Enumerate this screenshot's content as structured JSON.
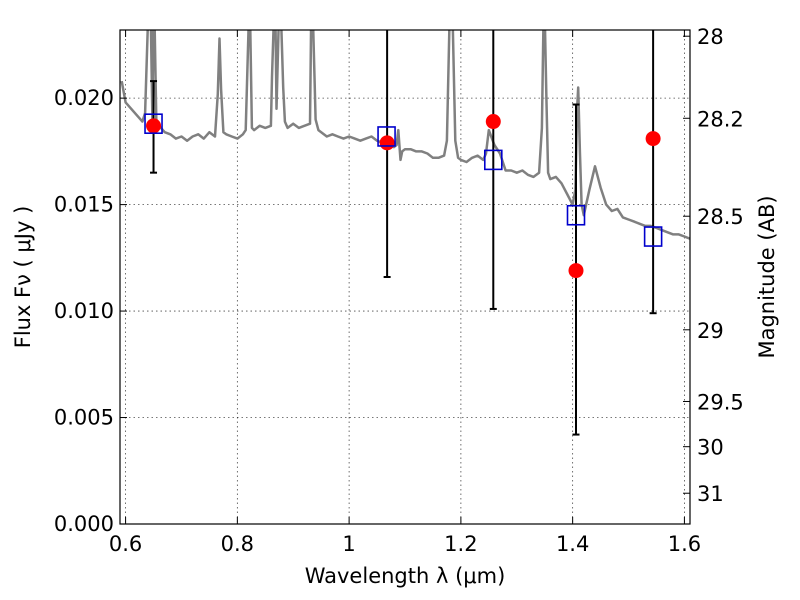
{
  "chart_data": {
    "type": "scatter",
    "xlabel": "Wavelength  λ (μm)",
    "ylabel": "Flux  Fν  ( μJy )",
    "y2label": "Magnitude (AB)",
    "xlim": [
      0.59,
      1.61
    ],
    "ylim": [
      0.0,
      0.0232
    ],
    "x_ticks": [
      0.6,
      0.8,
      1.0,
      1.2,
      1.4,
      1.6
    ],
    "x_tick_labels": [
      "0.6",
      "0.8",
      "1",
      "1.2",
      "1.4",
      "1.6"
    ],
    "y_ticks": [
      0.0,
      0.005,
      0.01,
      0.015,
      0.02
    ],
    "y_tick_labels": [
      "0.000",
      "0.005",
      "0.010",
      "0.015",
      "0.020"
    ],
    "mag_ticks": [
      28,
      28.2,
      28.5,
      29,
      29.5,
      30,
      31
    ],
    "mag_tick_labels": [
      "28",
      "28.2",
      "28.5",
      "29",
      "29.5",
      "30",
      "31"
    ],
    "grid": true,
    "colors": {
      "model": "#808080",
      "observed": "#ff0000",
      "model_phot": "#0000cc",
      "errorbar": "#000000"
    },
    "series": [
      {
        "marker": "circle",
        "color": "#ff0000",
        "x": [
          0.65,
          1.068,
          1.258,
          1.406,
          1.544
        ],
        "y": [
          0.0187,
          0.0179,
          0.0189,
          0.0119,
          0.0181
        ],
        "yerr_low": [
          0.0165,
          0.0116,
          0.0101,
          0.0042,
          0.0099
        ],
        "yerr_high": [
          0.0208,
          0.0232,
          0.0232,
          0.0197,
          0.0232
        ]
      },
      {
        "marker": "square",
        "color": "#0000cc",
        "x": [
          0.65,
          1.067,
          1.258,
          1.406,
          1.544
        ],
        "y": [
          0.0188,
          0.0182,
          0.0171,
          0.0145,
          0.0135
        ]
      },
      {
        "marker": "line",
        "color": "#808080",
        "x": [
          0.593,
          0.6,
          0.61,
          0.62,
          0.63,
          0.635,
          0.64,
          0.645,
          0.648,
          0.65,
          0.652,
          0.655,
          0.66,
          0.67,
          0.68,
          0.69,
          0.7,
          0.71,
          0.72,
          0.73,
          0.74,
          0.75,
          0.76,
          0.765,
          0.768,
          0.771,
          0.775,
          0.78,
          0.79,
          0.8,
          0.81,
          0.815,
          0.82,
          0.823,
          0.826,
          0.83,
          0.84,
          0.85,
          0.86,
          0.862,
          0.865,
          0.868,
          0.87,
          0.874,
          0.878,
          0.882,
          0.885,
          0.89,
          0.9,
          0.91,
          0.92,
          0.93,
          0.932,
          0.935,
          0.938,
          0.94,
          0.945,
          0.95,
          0.96,
          0.97,
          0.98,
          0.99,
          1.0,
          1.01,
          1.02,
          1.03,
          1.04,
          1.05,
          1.06,
          1.07,
          1.08,
          1.085,
          1.088,
          1.092,
          1.095,
          1.1,
          1.11,
          1.12,
          1.13,
          1.14,
          1.15,
          1.16,
          1.17,
          1.175,
          1.18,
          1.185,
          1.19,
          1.195,
          1.2,
          1.21,
          1.22,
          1.23,
          1.24,
          1.245,
          1.25,
          1.26,
          1.27,
          1.28,
          1.29,
          1.3,
          1.31,
          1.32,
          1.33,
          1.34,
          1.345,
          1.348,
          1.35,
          1.353,
          1.356,
          1.36,
          1.37,
          1.38,
          1.39,
          1.4,
          1.405,
          1.408,
          1.41,
          1.413,
          1.416,
          1.42,
          1.43,
          1.44,
          1.45,
          1.46,
          1.47,
          1.48,
          1.49,
          1.5,
          1.51,
          1.52,
          1.53,
          1.54,
          1.55,
          1.56,
          1.57,
          1.58,
          1.59,
          1.6,
          1.61
        ],
        "y": [
          0.0208,
          0.0198,
          0.0195,
          0.0192,
          0.0189,
          0.0193,
          0.0235,
          0.024,
          0.019,
          0.024,
          0.0235,
          0.019,
          0.0187,
          0.0184,
          0.0183,
          0.0181,
          0.0182,
          0.018,
          0.0182,
          0.0183,
          0.0181,
          0.0184,
          0.0182,
          0.0202,
          0.0228,
          0.0204,
          0.0184,
          0.0183,
          0.0182,
          0.0181,
          0.0183,
          0.0185,
          0.0232,
          0.0235,
          0.0186,
          0.0185,
          0.0187,
          0.0186,
          0.0187,
          0.021,
          0.0235,
          0.024,
          0.0195,
          0.0235,
          0.024,
          0.0205,
          0.0189,
          0.0186,
          0.0188,
          0.0186,
          0.0187,
          0.0188,
          0.0235,
          0.024,
          0.021,
          0.019,
          0.0185,
          0.0184,
          0.0182,
          0.0183,
          0.0182,
          0.0181,
          0.0182,
          0.0181,
          0.018,
          0.0181,
          0.0182,
          0.018,
          0.0179,
          0.0178,
          0.0177,
          0.0178,
          0.0185,
          0.0171,
          0.0175,
          0.0176,
          0.0176,
          0.0175,
          0.0175,
          0.0174,
          0.0172,
          0.0172,
          0.0173,
          0.018,
          0.024,
          0.024,
          0.018,
          0.0172,
          0.0171,
          0.017,
          0.0172,
          0.0173,
          0.0171,
          0.0174,
          0.0185,
          0.0178,
          0.0174,
          0.0166,
          0.0166,
          0.0165,
          0.0166,
          0.0164,
          0.0163,
          0.0165,
          0.0186,
          0.024,
          0.024,
          0.02,
          0.0165,
          0.0162,
          0.0163,
          0.016,
          0.0155,
          0.015,
          0.0157,
          0.0195,
          0.0205,
          0.0175,
          0.015,
          0.0145,
          0.0157,
          0.0168,
          0.0158,
          0.015,
          0.0147,
          0.0148,
          0.0144,
          0.0143,
          0.0142,
          0.0141,
          0.014,
          0.014,
          0.0139,
          0.0138,
          0.0137,
          0.0136,
          0.0136,
          0.0135,
          0.0134
        ]
      }
    ]
  }
}
